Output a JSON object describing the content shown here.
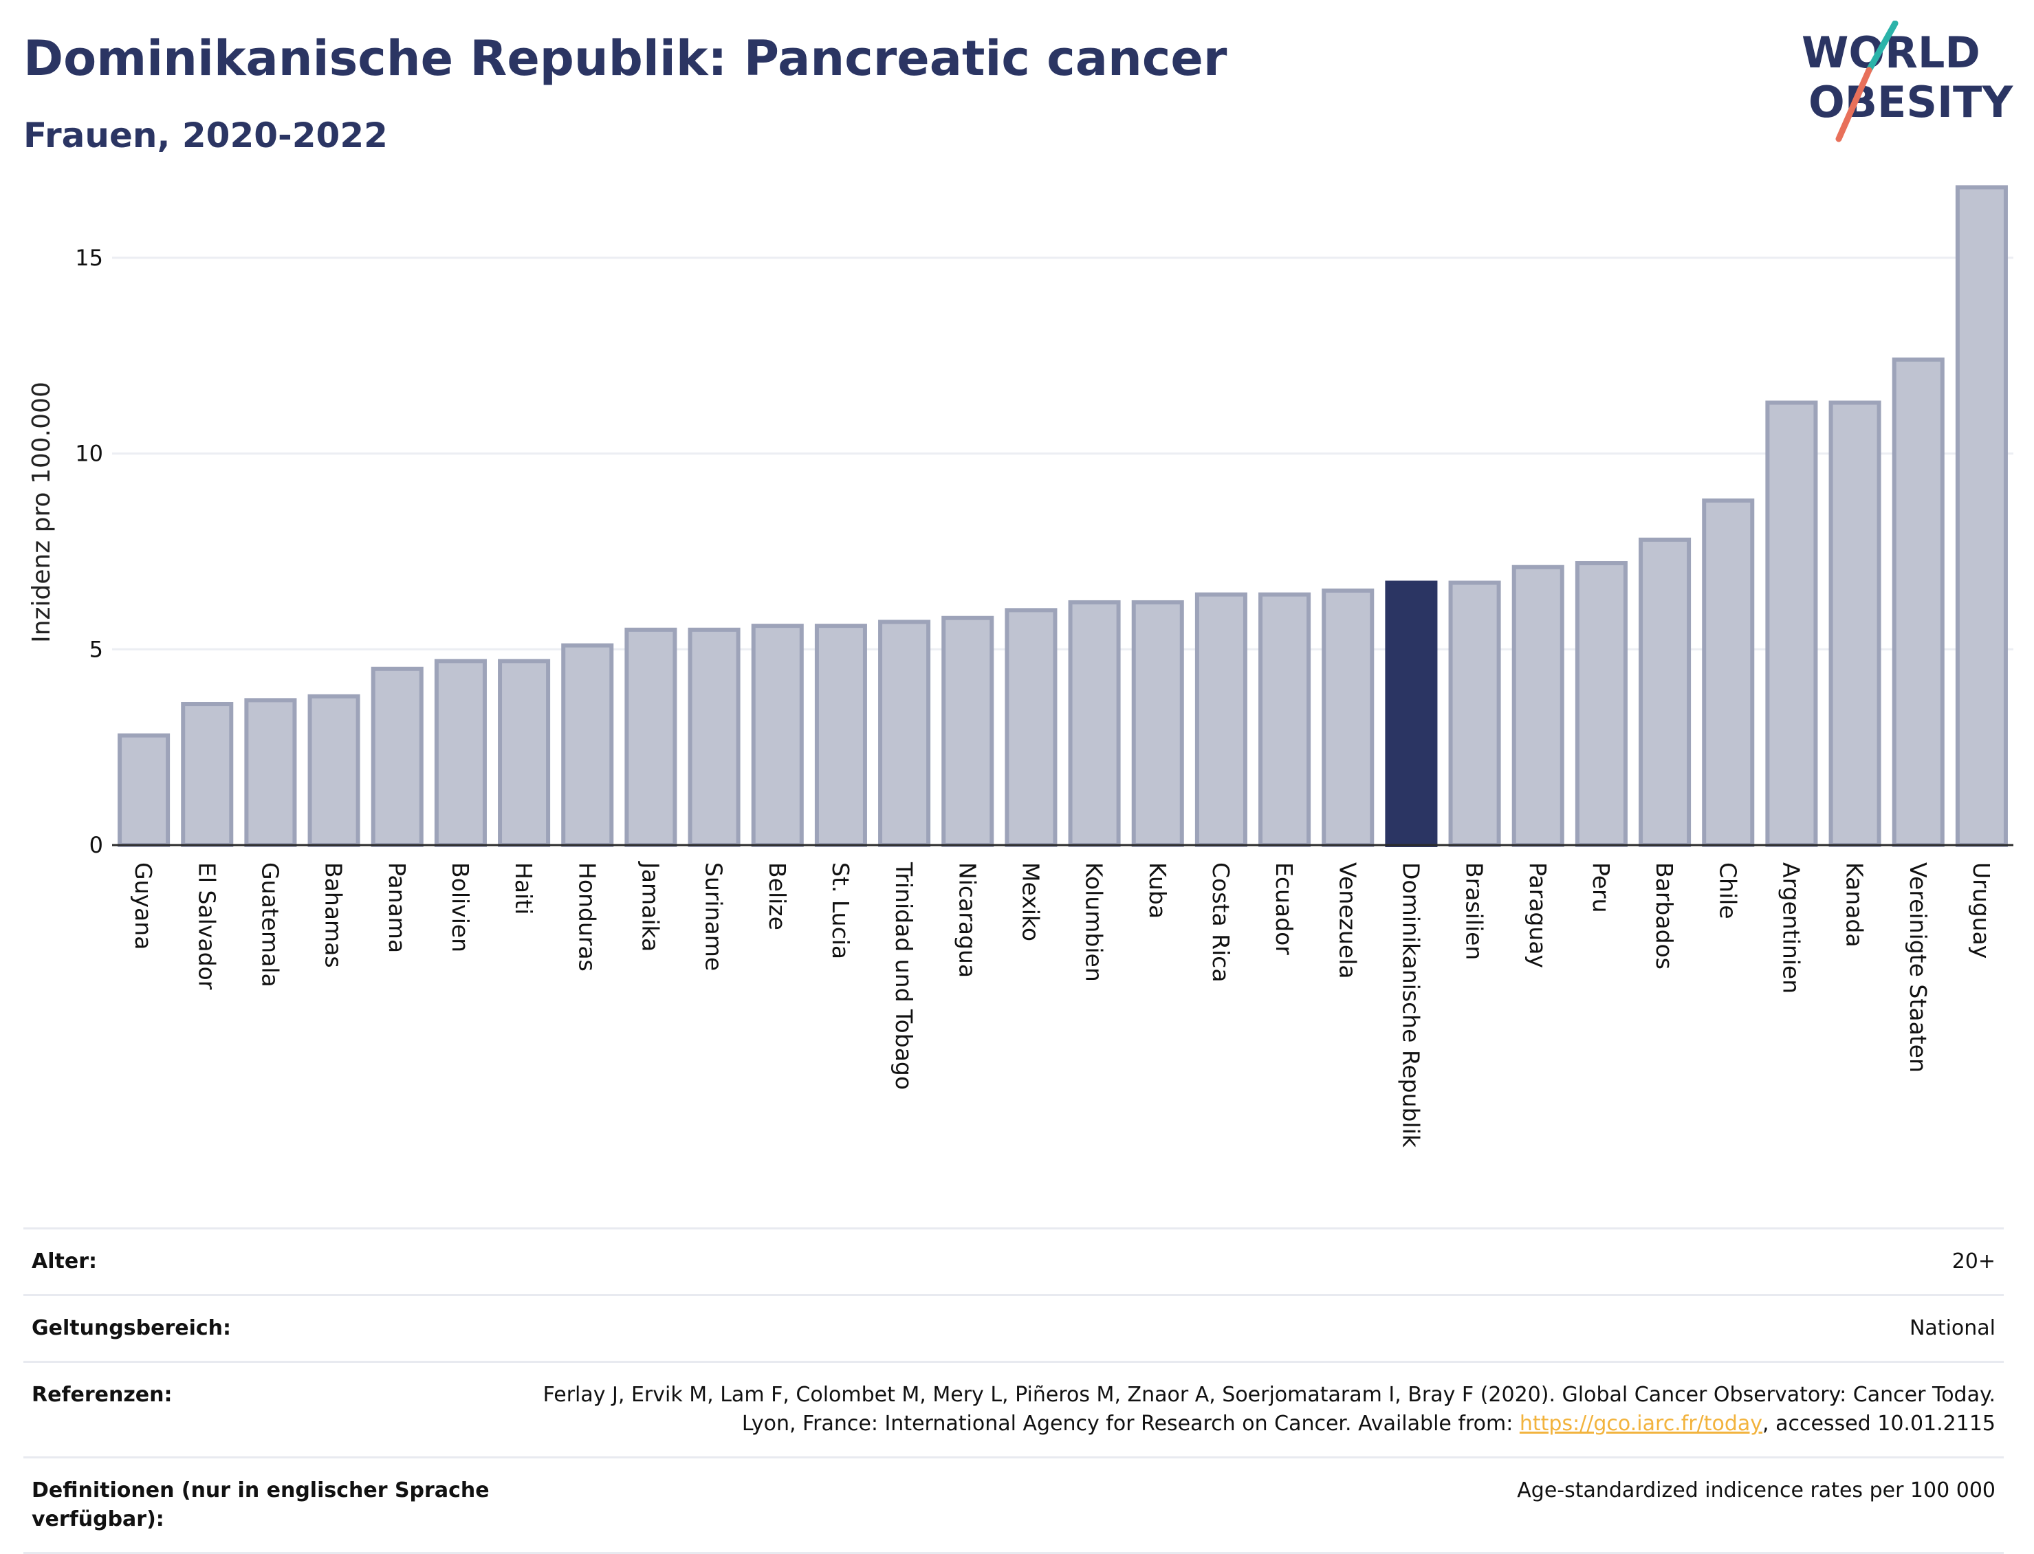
{
  "header": {
    "title": "Dominikanische Republik: Pancreatic cancer",
    "subtitle": "Frauen, 2020-2022"
  },
  "logo": {
    "line1": "WORLD",
    "line2": "OBESITY"
  },
  "colors": {
    "highlight": "#2b3563",
    "bar_fill": "#bfc3d1",
    "bar_stroke": "#9da3b9",
    "gridline": "#eceef3",
    "axis": "#2b2b2b",
    "logo_teal": "#2bb3a9",
    "logo_red": "#e8705a",
    "link": "#f2b33d"
  },
  "chart_data": {
    "type": "bar",
    "ylabel": "Inzidenz pro 100.000",
    "ylim": [
      0,
      17
    ],
    "yticks": [
      0,
      5,
      10,
      15
    ],
    "highlight": "Dominikanische Republik",
    "categories": [
      "Guyana",
      "El Salvador",
      "Guatemala",
      "Bahamas",
      "Panama",
      "Bolivien",
      "Haiti",
      "Honduras",
      "Jamaika",
      "Suriname",
      "Belize",
      "St. Lucia",
      "Trinidad und Tobago",
      "Nicaragua",
      "Mexiko",
      "Kolumbien",
      "Kuba",
      "Costa Rica",
      "Ecuador",
      "Venezuela",
      "Dominikanische Republik",
      "Brasilien",
      "Paraguay",
      "Peru",
      "Barbados",
      "Chile",
      "Argentinien",
      "Kanada",
      "Vereinigte Staaten",
      "Uruguay"
    ],
    "values": [
      2.8,
      3.6,
      3.7,
      3.8,
      4.5,
      4.7,
      4.7,
      5.1,
      5.5,
      5.5,
      5.6,
      5.6,
      5.7,
      5.8,
      6.0,
      6.2,
      6.2,
      6.4,
      6.4,
      6.5,
      6.7,
      6.7,
      7.1,
      7.2,
      7.8,
      8.8,
      11.3,
      11.3,
      12.4,
      16.8
    ]
  },
  "meta": {
    "age_label": "Alter:",
    "age_value": "20+",
    "scope_label": "Geltungsbereich:",
    "scope_value": "National",
    "ref_label": "Referenzen:",
    "ref_text_1": "Ferlay J, Ervik M, Lam F, Colombet M, Mery L, Piñeros M, Znaor A, Soerjomataram I, Bray F (2020). Global Cancer Observatory: Cancer Today. Lyon, France: International Agency for Research on Cancer. Available from: ",
    "ref_link": "https://gco.iarc.fr/today",
    "ref_text_2": ", accessed 10.01.2115",
    "def_label": "Definitionen (nur in englischer Sprache verfügbar):",
    "def_value": "Age-standardized indicence rates per 100 000"
  }
}
